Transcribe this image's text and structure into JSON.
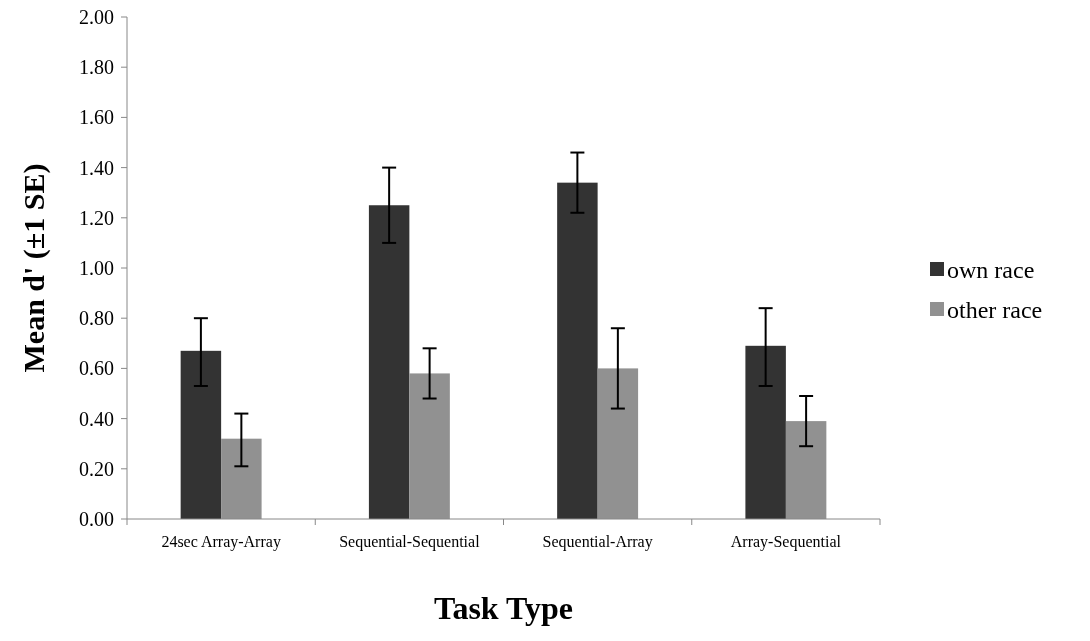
{
  "chart_data": {
    "type": "bar",
    "xlabel": "Task Type",
    "ylabel": "Mean d' (±1 SE)",
    "categories": [
      "24sec Array-Array",
      "Sequential-Sequential",
      "Sequential-Array",
      "Array-Sequential"
    ],
    "series": [
      {
        "name": "own race",
        "color": "#333333",
        "values": [
          0.67,
          1.25,
          1.34,
          0.69
        ],
        "errors": [
          [
            0.53,
            0.8
          ],
          [
            1.1,
            1.4
          ],
          [
            1.22,
            1.46
          ],
          [
            0.53,
            0.84
          ]
        ]
      },
      {
        "name": "other race",
        "color": "#919191",
        "values": [
          0.32,
          0.58,
          0.6,
          0.39
        ],
        "errors": [
          [
            0.21,
            0.42
          ],
          [
            0.48,
            0.68
          ],
          [
            0.44,
            0.76
          ],
          [
            0.29,
            0.49
          ]
        ]
      }
    ],
    "ylim": [
      0,
      2
    ],
    "yticks": [
      {
        "value": 0,
        "label": "0.00"
      },
      {
        "value": 0.2,
        "label": "0.20"
      },
      {
        "value": 0.4,
        "label": "0.40"
      },
      {
        "value": 0.6,
        "label": "0.60"
      },
      {
        "value": 0.8,
        "label": "0.80"
      },
      {
        "value": 1,
        "label": "1.00"
      },
      {
        "value": 1.2,
        "label": "1.20"
      },
      {
        "value": 1.4,
        "label": "1.40"
      },
      {
        "value": 1.6,
        "label": "1.60"
      },
      {
        "value": 1.8,
        "label": "1.80"
      },
      {
        "value": 2,
        "label": "2.00"
      }
    ],
    "grid": false,
    "legend": "right"
  }
}
